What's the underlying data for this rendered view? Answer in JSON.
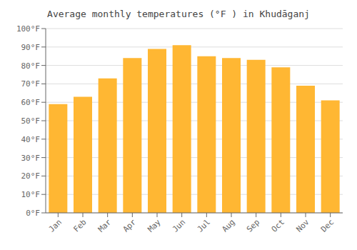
{
  "chart_data": {
    "type": "bar",
    "title": "Average monthly temperatures (°F ) in Khudāganj",
    "categories": [
      "Jan",
      "Feb",
      "Mar",
      "Apr",
      "May",
      "Jun",
      "Jul",
      "Aug",
      "Sep",
      "Oct",
      "Nov",
      "Dec"
    ],
    "values": [
      59,
      63,
      73,
      84,
      89,
      91,
      85,
      84,
      83,
      79,
      69,
      61
    ],
    "color": "#FFB733",
    "ylim": [
      0,
      100
    ],
    "yticks": [
      {
        "value": 0,
        "label": "0°F"
      },
      {
        "value": 10,
        "label": "10°F"
      },
      {
        "value": 20,
        "label": "20°F"
      },
      {
        "value": 30,
        "label": "30°F"
      },
      {
        "value": 40,
        "label": "40°F"
      },
      {
        "value": 50,
        "label": "50°F"
      },
      {
        "value": 60,
        "label": "60°F"
      },
      {
        "value": 70,
        "label": "70°F"
      },
      {
        "value": 80,
        "label": "80°F"
      },
      {
        "value": 90,
        "label": "90°F"
      },
      {
        "value": 100,
        "label": "100°F"
      }
    ],
    "grid": true
  }
}
